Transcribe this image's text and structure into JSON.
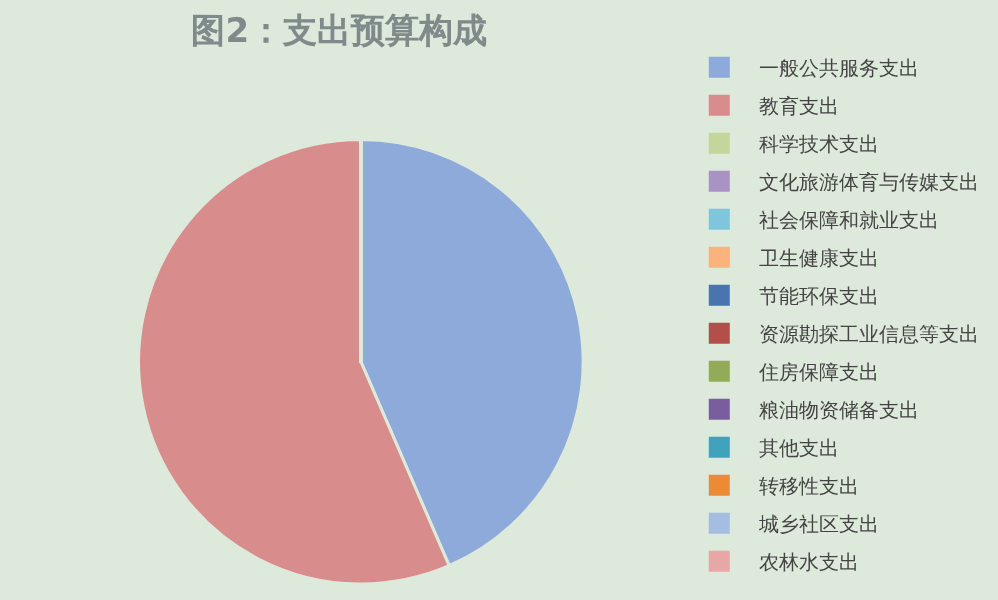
{
  "chart_data": {
    "type": "pie",
    "title": "图2：支出预算构成",
    "categories": [
      "一般公共服务支出",
      "教育支出",
      "科学技术支出",
      "文化旅游体育与传媒支出",
      "社会保障和就业支出",
      "卫生健康支出",
      "节能环保支出",
      "资源勘探工业信息等支出",
      "住房保障支出",
      "粮油物资储备支出",
      "其他支出",
      "转移性支出",
      "城乡社区支出",
      "农林水支出"
    ],
    "values": [
      43.5,
      56.5,
      0,
      0,
      0,
      0,
      0,
      0,
      0,
      0,
      0,
      0,
      0,
      0
    ],
    "colors": [
      "#8eaadb",
      "#d98c8c",
      "#c3d69b",
      "#a992c4",
      "#7fc6dc",
      "#fbb27c",
      "#4a74b0",
      "#b34e4b",
      "#92ab58",
      "#7a5d9c",
      "#40a3bb",
      "#ef8a34",
      "#a5bde0",
      "#e7a7a6"
    ],
    "legend": "right"
  }
}
